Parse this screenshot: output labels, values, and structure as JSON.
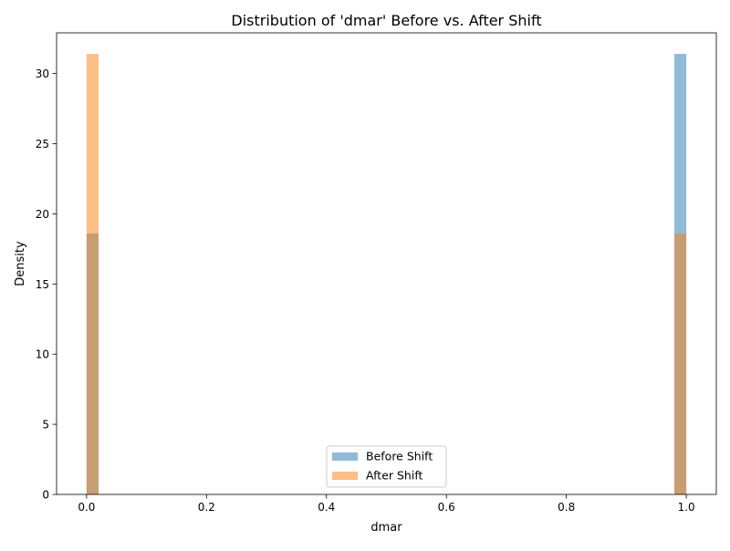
{
  "chart_data": {
    "type": "bar",
    "title": "Distribution of 'dmar' Before vs. After Shift",
    "xlabel": "dmar",
    "ylabel": "Density",
    "xlim": [
      -0.05,
      1.05
    ],
    "ylim": [
      0,
      32.9
    ],
    "xticks": [
      0.0,
      0.2,
      0.4,
      0.6,
      0.8,
      1.0
    ],
    "xtick_labels": [
      "0.0",
      "0.2",
      "0.4",
      "0.6",
      "0.8",
      "1.0"
    ],
    "yticks": [
      0,
      5,
      10,
      15,
      20,
      25,
      30
    ],
    "ytick_labels": [
      "0",
      "5",
      "10",
      "15",
      "20",
      "25",
      "30"
    ],
    "grid": false,
    "legend_position": "bottom-center",
    "series": [
      {
        "name": "Before Shift",
        "color": "#1f77b4",
        "opacity": 0.5,
        "bins": [
          {
            "x0": 0.0,
            "x1": 0.02,
            "density": 18.6
          },
          {
            "x0": 0.98,
            "x1": 1.0,
            "density": 31.4
          }
        ]
      },
      {
        "name": "After Shift",
        "color": "#ff7f0e",
        "opacity": 0.5,
        "bins": [
          {
            "x0": 0.0,
            "x1": 0.02,
            "density": 31.4
          },
          {
            "x0": 0.98,
            "x1": 1.0,
            "density": 18.6
          }
        ]
      }
    ]
  }
}
